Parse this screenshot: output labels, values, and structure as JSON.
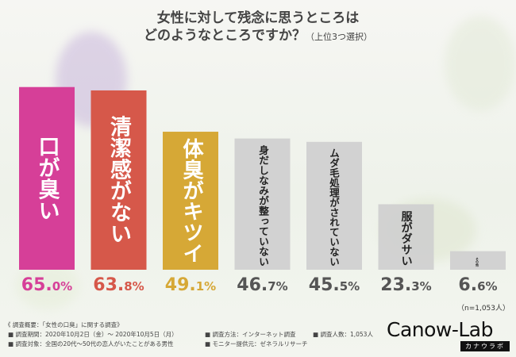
{
  "title": {
    "line1": "女性に対して残念に思うところは",
    "line2": "どのようなところですか？",
    "note": "（上位3つ選択）"
  },
  "chart_data": {
    "type": "bar",
    "categories": [
      "口が臭い",
      "清潔感がない",
      "体臭がキツイ",
      "身だしなみが整っていない",
      "ムダ毛処理がされていない",
      "服がダサい",
      "その他"
    ],
    "values": [
      65.0,
      63.8,
      49.1,
      46.7,
      45.5,
      23.3,
      6.6
    ],
    "value_labels": [
      {
        "num": "65.",
        "dec": "0%"
      },
      {
        "num": "63.",
        "dec": "8%"
      },
      {
        "num": "49.",
        "dec": "1%"
      },
      {
        "num": "46.",
        "dec": "7%"
      },
      {
        "num": "45.",
        "dec": "5%"
      },
      {
        "num": "23.",
        "dec": "3%"
      },
      {
        "num": "6.",
        "dec": "6%"
      }
    ],
    "colors": [
      "#d63f98",
      "#d6584a",
      "#d6a836",
      "#cfcfcf",
      "#cfcfcf",
      "#cfcfcf",
      "#cfcfcf"
    ],
    "label_colors": [
      "#ffffff",
      "#ffffff",
      "#ffffff",
      "#222222",
      "#222222",
      "#222222",
      "#222222"
    ],
    "value_colors": [
      "#d63f98",
      "#d6584a",
      "#d6a836",
      "#555555",
      "#555555",
      "#555555",
      "#555555"
    ],
    "ylim": [
      0,
      70
    ]
  },
  "sample": "（n=1,053人）",
  "notes": {
    "overview": "《 調査概要：「女性の口臭」に関する調査》",
    "period": "■ 調査期間：2020年10月2日（金）～ 2020年10月5日（月）",
    "target": "■ 調査対象：全国の20代～50代の恋人がいたことがある男性",
    "method": "■ 調査方法：インターネット調査",
    "provider": "■ モニター提供元：ゼネラルリサーチ",
    "count": "■ 調査人数：1,053人"
  },
  "logo": {
    "word": "Canow-Lab",
    "kana": "カナウラボ"
  }
}
